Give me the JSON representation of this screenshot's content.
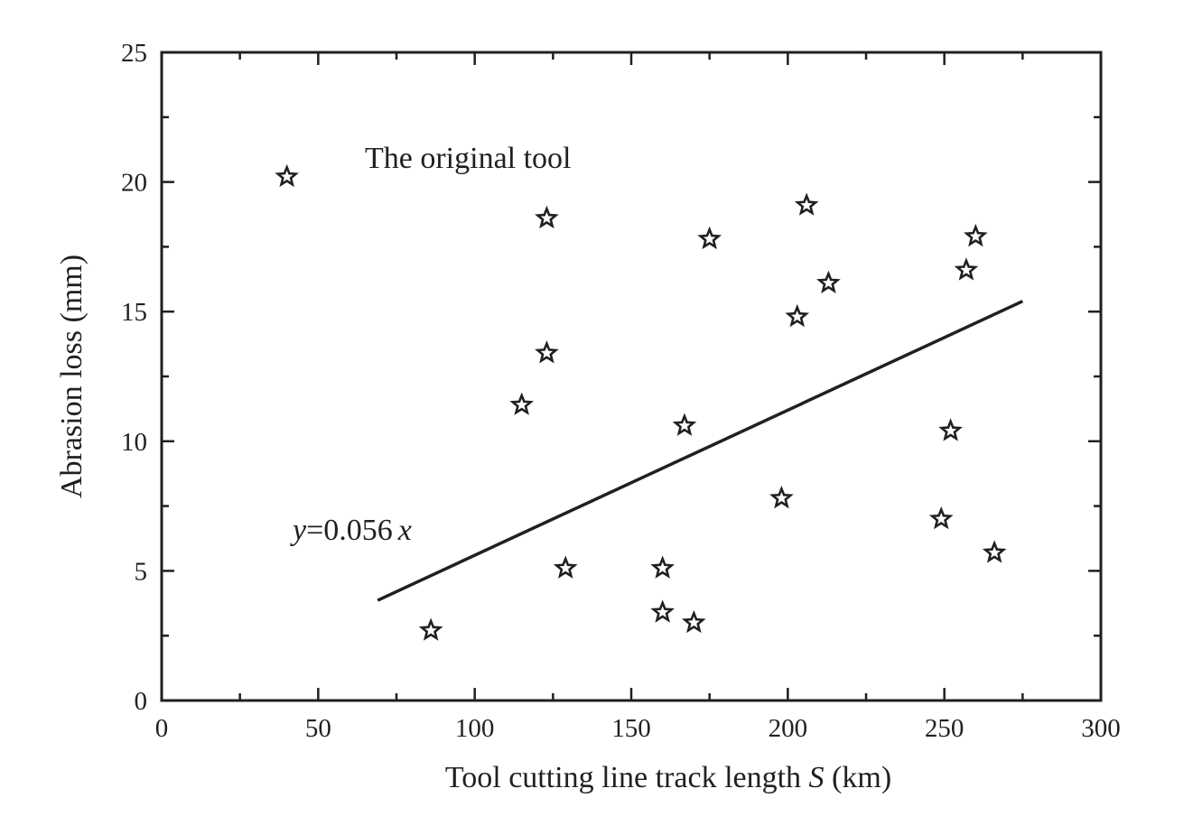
{
  "chart_data": {
    "type": "scatter",
    "title": "",
    "xlabel_prefix": "Tool cutting line track length ",
    "xlabel_var": "S",
    "xlabel_suffix": " (km)",
    "ylabel": "Abrasion loss (mm)",
    "xlim": [
      0,
      300
    ],
    "ylim": [
      0,
      25
    ],
    "xticks": [
      0,
      50,
      100,
      150,
      200,
      250,
      300
    ],
    "yticks": [
      0,
      5,
      10,
      15,
      20,
      25
    ],
    "grid": false,
    "marker": "star",
    "color": "#231f20",
    "annotation": "The original tool",
    "fit": {
      "equation_var_y": "y",
      "equation_mid": "=0.056",
      "equation_var_x": "x",
      "slope": 0.056,
      "x_range": [
        69,
        275
      ]
    },
    "points": [
      {
        "x": 40,
        "y": 20.2
      },
      {
        "x": 86,
        "y": 2.7
      },
      {
        "x": 115,
        "y": 11.4
      },
      {
        "x": 123,
        "y": 18.6
      },
      {
        "x": 123,
        "y": 13.4
      },
      {
        "x": 129,
        "y": 5.1
      },
      {
        "x": 160,
        "y": 5.1
      },
      {
        "x": 160,
        "y": 3.4
      },
      {
        "x": 167,
        "y": 10.6
      },
      {
        "x": 170,
        "y": 3.0
      },
      {
        "x": 175,
        "y": 17.8
      },
      {
        "x": 198,
        "y": 7.8
      },
      {
        "x": 203,
        "y": 14.8
      },
      {
        "x": 206,
        "y": 19.1
      },
      {
        "x": 213,
        "y": 16.1
      },
      {
        "x": 249,
        "y": 7.0
      },
      {
        "x": 252,
        "y": 10.4
      },
      {
        "x": 257,
        "y": 16.6
      },
      {
        "x": 260,
        "y": 17.9
      },
      {
        "x": 266,
        "y": 5.7
      }
    ]
  }
}
